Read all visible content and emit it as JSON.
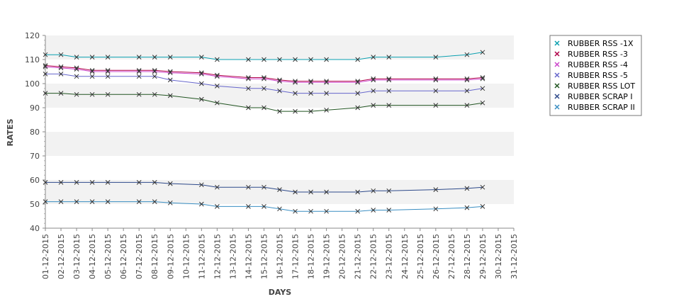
{
  "chart_data": {
    "type": "line",
    "title": "",
    "xlabel": "DAYS",
    "ylabel": "RATES",
    "ylim": [
      40,
      120
    ],
    "yticks": [
      40,
      50,
      60,
      70,
      80,
      90,
      100,
      110,
      120
    ],
    "grid": "alternating horizontal bands",
    "legend_position": "top-right",
    "x_tick_labels": [
      "01-12-2015",
      "02-12-2015",
      "03-12-2015",
      "04-12-2015",
      "05-12-2015",
      "06-12-2015",
      "07-12-2015",
      "08-12-2015",
      "09-12-2015",
      "10-12-2015",
      "11-12-2015",
      "12-12-2015",
      "13-12-2015",
      "14-12-2015",
      "15-12-2015",
      "16-12-2015",
      "17-12-2015",
      "18-12-2015",
      "19-12-2015",
      "20-12-2015",
      "21-12-2015",
      "22-12-2015",
      "23-12-2015",
      "24-12-2015",
      "25-12-2015",
      "26-12-2015",
      "27-12-2015",
      "28-12-2015",
      "29-12-2015",
      "30-12-2015",
      "31-12-2015"
    ],
    "x": [
      "01-12-2015",
      "02-12-2015",
      "03-12-2015",
      "04-12-2015",
      "05-12-2015",
      "07-12-2015",
      "08-12-2015",
      "09-12-2015",
      "11-12-2015",
      "12-12-2015",
      "14-12-2015",
      "15-12-2015",
      "16-12-2015",
      "17-12-2015",
      "18-12-2015",
      "19-12-2015",
      "21-12-2015",
      "22-12-2015",
      "23-12-2015",
      "26-12-2015",
      "28-12-2015",
      "29-12-2015"
    ],
    "series": [
      {
        "name": "RUBBER RSS -1X",
        "color": "#0ba0b0",
        "values": [
          112,
          112,
          111,
          111,
          111,
          111,
          111,
          111,
          111,
          110,
          110,
          110,
          110,
          110,
          110,
          110,
          110,
          111,
          111,
          111,
          112,
          113
        ]
      },
      {
        "name": "RUBBER RSS -3",
        "color": "#b00048",
        "values": [
          107.5,
          107,
          106.5,
          105.5,
          105.5,
          105.5,
          105.5,
          105,
          104.5,
          103.5,
          102.5,
          102.5,
          101.5,
          101,
          101,
          101,
          101,
          102,
          102,
          102,
          102,
          102.5
        ]
      },
      {
        "name": "RUBBER RSS -4",
        "color": "#cc44cc",
        "values": [
          107,
          106.5,
          106,
          105,
          105,
          105,
          105,
          104.5,
          104,
          103,
          102,
          102,
          101,
          100.5,
          100.5,
          100.5,
          100.5,
          101.5,
          101.5,
          101.5,
          101.5,
          102
        ]
      },
      {
        "name": "RUBBER RSS -5",
        "color": "#6666cc",
        "values": [
          104,
          104,
          103,
          103,
          103,
          103,
          103,
          101.5,
          100,
          99,
          98,
          98,
          97,
          96,
          96,
          96,
          96,
          97,
          97,
          97,
          97,
          98
        ]
      },
      {
        "name": "RUBBER RSS LOT",
        "color": "#225522",
        "values": [
          96,
          96,
          95.5,
          95.5,
          95.5,
          95.5,
          95.5,
          95,
          93.5,
          92,
          90,
          90,
          88.5,
          88.5,
          88.5,
          89,
          90,
          91,
          91,
          91,
          91,
          92
        ]
      },
      {
        "name": "RUBBER SCRAP I",
        "color": "#2e4a8a",
        "values": [
          59,
          59,
          59,
          59,
          59,
          59,
          59,
          58.5,
          58,
          57,
          57,
          57,
          56,
          55,
          55,
          55,
          55,
          55.5,
          55.5,
          56,
          56.5,
          57
        ]
      },
      {
        "name": "RUBBER SCRAP II",
        "color": "#3a8ec2",
        "values": [
          51,
          51,
          51,
          51,
          51,
          51,
          51,
          50.5,
          50,
          49,
          49,
          49,
          48,
          47,
          47,
          47,
          47,
          47.5,
          47.5,
          48,
          48.5,
          49
        ]
      }
    ]
  }
}
